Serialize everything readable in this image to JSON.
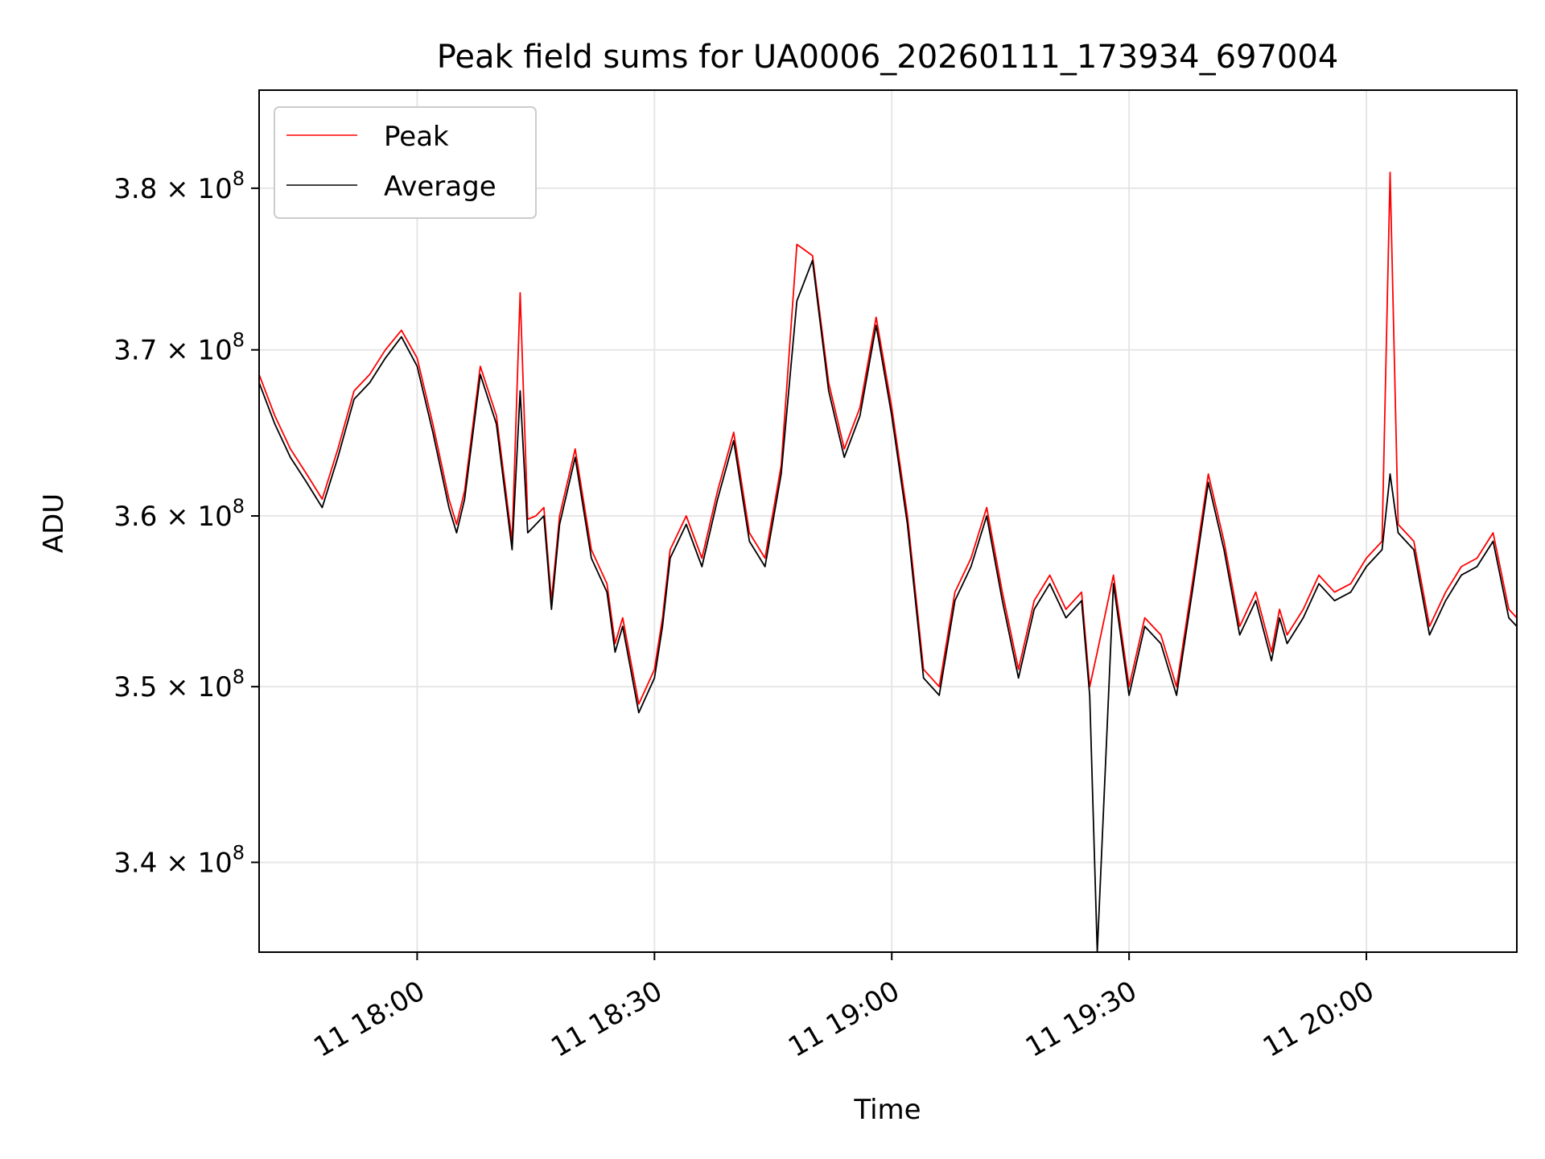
{
  "chart_data": {
    "type": "line",
    "title": "Peak field sums for UA0006_20260111_173934_697004",
    "xlabel": "Time",
    "ylabel": "ADU",
    "y_scale": "log",
    "xlim": [
      17.667,
      20.317
    ],
    "ylim": [
      335000000.0,
      386200000.0
    ],
    "grid": true,
    "legend_position": "upper-left",
    "x_ticks": [
      {
        "value": 18.0,
        "label": "11 18:00"
      },
      {
        "value": 18.5,
        "label": "11 18:30"
      },
      {
        "value": 19.0,
        "label": "11 19:00"
      },
      {
        "value": 19.5,
        "label": "11 19:30"
      },
      {
        "value": 20.0,
        "label": "11 20:00"
      }
    ],
    "y_ticks": [
      {
        "value": 340000000.0,
        "mantissa": "3.4",
        "base": "10",
        "exp": "8"
      },
      {
        "value": 350000000.0,
        "mantissa": "3.5",
        "base": "10",
        "exp": "8"
      },
      {
        "value": 360000000.0,
        "mantissa": "3.6",
        "base": "10",
        "exp": "8"
      },
      {
        "value": 370000000.0,
        "mantissa": "3.7",
        "base": "10",
        "exp": "8"
      },
      {
        "value": 380000000.0,
        "mantissa": "3.8",
        "base": "10",
        "exp": "8"
      }
    ],
    "x": [
      17.667,
      17.7,
      17.733,
      17.767,
      17.8,
      17.833,
      17.867,
      17.9,
      17.933,
      17.967,
      18.0,
      18.033,
      18.067,
      18.083,
      18.1,
      18.133,
      18.167,
      18.2,
      18.217,
      18.233,
      18.25,
      18.267,
      18.283,
      18.3,
      18.333,
      18.367,
      18.4,
      18.417,
      18.433,
      18.467,
      18.5,
      18.517,
      18.533,
      18.567,
      18.6,
      18.633,
      18.667,
      18.7,
      18.733,
      18.767,
      18.8,
      18.833,
      18.867,
      18.9,
      18.933,
      18.967,
      19.0,
      19.033,
      19.067,
      19.1,
      19.133,
      19.167,
      19.2,
      19.233,
      19.267,
      19.3,
      19.333,
      19.367,
      19.4,
      19.417,
      19.433,
      19.467,
      19.5,
      19.533,
      19.567,
      19.6,
      19.633,
      19.667,
      19.7,
      19.733,
      19.767,
      19.8,
      19.817,
      19.833,
      19.867,
      19.9,
      19.933,
      19.967,
      20.0,
      20.033,
      20.05,
      20.067,
      20.1,
      20.133,
      20.167,
      20.2,
      20.233,
      20.267,
      20.3,
      20.317
    ],
    "series": [
      {
        "name": "Peak",
        "color": "#ff0000",
        "values": [
          368500000.0,
          366000000.0,
          364000000.0,
          362500000.0,
          361000000.0,
          364000000.0,
          367500000.0,
          368500000.0,
          370000000.0,
          371200000.0,
          369500000.0,
          365500000.0,
          361000000.0,
          359500000.0,
          361500000.0,
          369000000.0,
          366000000.0,
          358500000.0,
          373500000.0,
          359800000.0,
          360000000.0,
          360500000.0,
          355000000.0,
          360000000.0,
          364000000.0,
          358000000.0,
          356000000.0,
          352500000.0,
          354000000.0,
          349000000.0,
          351000000.0,
          354000000.0,
          358000000.0,
          360000000.0,
          357500000.0,
          361500000.0,
          365000000.0,
          359000000.0,
          357500000.0,
          363000000.0,
          376500000.0,
          375800000.0,
          368000000.0,
          364000000.0,
          366500000.0,
          372000000.0,
          366500000.0,
          360000000.0,
          351000000.0,
          350000000.0,
          355500000.0,
          357500000.0,
          360500000.0,
          355500000.0,
          351000000.0,
          355000000.0,
          356500000.0,
          354500000.0,
          355500000.0,
          350000000.0,
          352000000.0,
          356500000.0,
          350000000.0,
          354000000.0,
          353000000.0,
          350000000.0,
          356000000.0,
          362500000.0,
          358500000.0,
          353500000.0,
          355500000.0,
          352000000.0,
          354500000.0,
          353000000.0,
          354500000.0,
          356500000.0,
          355500000.0,
          356000000.0,
          357500000.0,
          358500000.0,
          381000000.0,
          359500000.0,
          358500000.0,
          353500000.0,
          355500000.0,
          357000000.0,
          357500000.0,
          359000000.0,
          354500000.0,
          354000000.0
        ]
      },
      {
        "name": "Average",
        "color": "#000000",
        "values": [
          368000000.0,
          365500000.0,
          363500000.0,
          362000000.0,
          360500000.0,
          363500000.0,
          367000000.0,
          368000000.0,
          369500000.0,
          370800000.0,
          369000000.0,
          365000000.0,
          360500000.0,
          359000000.0,
          361000000.0,
          368500000.0,
          365500000.0,
          358000000.0,
          367500000.0,
          359000000.0,
          359500000.0,
          360000000.0,
          354500000.0,
          359500000.0,
          363500000.0,
          357500000.0,
          355500000.0,
          352000000.0,
          353500000.0,
          348500000.0,
          350500000.0,
          353500000.0,
          357500000.0,
          359500000.0,
          357000000.0,
          361000000.0,
          364500000.0,
          358500000.0,
          357000000.0,
          362500000.0,
          373000000.0,
          375500000.0,
          367500000.0,
          363500000.0,
          366000000.0,
          371500000.0,
          366000000.0,
          359500000.0,
          350500000.0,
          349500000.0,
          355000000.0,
          357000000.0,
          360000000.0,
          355000000.0,
          350500000.0,
          354500000.0,
          356000000.0,
          354000000.0,
          355000000.0,
          349500000.0,
          335000000.0,
          356000000.0,
          349500000.0,
          353500000.0,
          352500000.0,
          349500000.0,
          355500000.0,
          362000000.0,
          358000000.0,
          353000000.0,
          355000000.0,
          351500000.0,
          354000000.0,
          352500000.0,
          354000000.0,
          356000000.0,
          355000000.0,
          355500000.0,
          357000000.0,
          358000000.0,
          362500000.0,
          359000000.0,
          358000000.0,
          353000000.0,
          355000000.0,
          356500000.0,
          357000000.0,
          358500000.0,
          354000000.0,
          353500000.0
        ]
      }
    ]
  }
}
